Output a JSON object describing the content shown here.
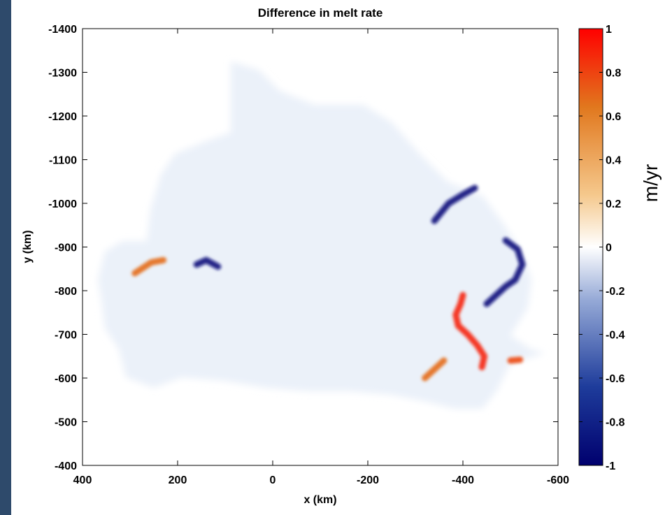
{
  "chart_data": {
    "type": "heatmap",
    "title": "Difference in melt rate",
    "xlabel": "x (km)",
    "ylabel": "y (km)",
    "xlim": [
      400,
      -600
    ],
    "ylim": [
      -1400,
      -400
    ],
    "x_ticks": [
      "400",
      "200",
      "0",
      "-200",
      "-400",
      "-600"
    ],
    "x_tick_values": [
      400,
      200,
      0,
      -200,
      -400,
      -600
    ],
    "y_ticks": [
      "-1400",
      "-1300",
      "-1200",
      "-1100",
      "-1000",
      "-900",
      "-800",
      "-700",
      "-600",
      "-500",
      "-400"
    ],
    "y_tick_values": [
      -1400,
      -1300,
      -1200,
      -1100,
      -1000,
      -900,
      -800,
      -700,
      -600,
      -500,
      -400
    ],
    "colorbar": {
      "label": "m/yr",
      "range": [
        -1,
        1
      ],
      "ticks": [
        "1",
        "0.8",
        "0.6",
        "0.4",
        "0.2",
        "0",
        "-0.2",
        "-0.4",
        "-0.6",
        "-0.8",
        "-1"
      ],
      "tick_values": [
        1,
        0.8,
        0.6,
        0.4,
        0.2,
        0,
        -0.2,
        -0.4,
        -0.6,
        -0.8,
        -1
      ],
      "colormap": [
        "#00006e",
        "#1e3c9b",
        "#96aad7",
        "#ffffff",
        "#f5c88c",
        "#e1781e",
        "#ff0000"
      ]
    },
    "features": [
      {
        "desc": "positive melt band",
        "value": 0.9,
        "points": [
          [
            -400,
            -790
          ],
          [
            -395,
            -770
          ],
          [
            -385,
            -745
          ],
          [
            -390,
            -720
          ],
          [
            -410,
            -700
          ],
          [
            -430,
            -675
          ],
          [
            -445,
            -650
          ],
          [
            -440,
            -625
          ]
        ]
      },
      {
        "desc": "negative melt band",
        "value": -0.9,
        "points": [
          [
            -425,
            -1035
          ],
          [
            -400,
            -1020
          ],
          [
            -370,
            -1000
          ],
          [
            -340,
            -960
          ]
        ]
      },
      {
        "desc": "negative melt band",
        "value": -0.9,
        "points": [
          [
            -490,
            -915
          ],
          [
            -515,
            -895
          ],
          [
            -525,
            -860
          ],
          [
            -510,
            -825
          ],
          [
            -490,
            -810
          ],
          [
            -470,
            -790
          ],
          [
            -450,
            -770
          ]
        ]
      },
      {
        "desc": "negative melt band",
        "value": -0.9,
        "points": [
          [
            115,
            -855
          ],
          [
            140,
            -870
          ],
          [
            160,
            -860
          ]
        ]
      },
      {
        "desc": "positive melt band",
        "value": 0.7,
        "points": [
          [
            290,
            -840
          ],
          [
            255,
            -865
          ],
          [
            230,
            -870
          ]
        ]
      },
      {
        "desc": "positive melt band",
        "value": 0.7,
        "points": [
          [
            -320,
            -600
          ],
          [
            -340,
            -620
          ],
          [
            -360,
            -640
          ]
        ]
      },
      {
        "desc": "positive melt band",
        "value": 0.8,
        "points": [
          [
            -500,
            -640
          ],
          [
            -520,
            -642
          ]
        ]
      }
    ]
  }
}
